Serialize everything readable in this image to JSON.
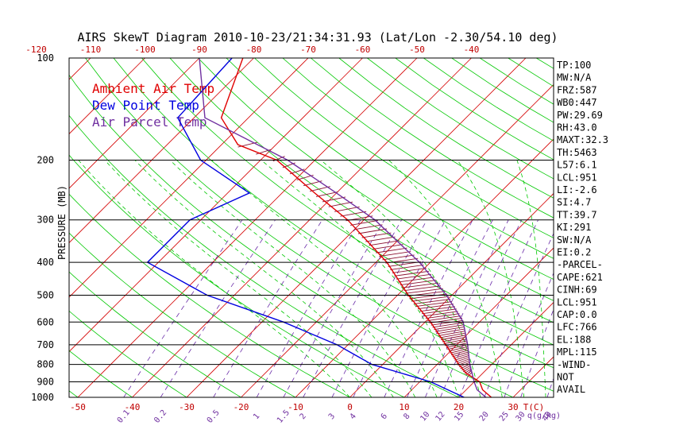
{
  "chart_data": {
    "type": "line",
    "title": "AIRS SkewT Diagram 2010-10-23/21:34:31.93 (Lat/Lon -2.30/54.10 deg)",
    "ylabel": "PRESSURE (MB)",
    "xlabel": "T(C)",
    "mixing_ratio_label": "q(g/kg)",
    "pressure_ticks": [
      100,
      200,
      300,
      400,
      500,
      600,
      700,
      800,
      900,
      1000
    ],
    "bottom_temp_ticks": [
      -50,
      -40,
      -30,
      -20,
      -10,
      0,
      10,
      20,
      30
    ],
    "top_temp_ticks": [
      -120,
      -110,
      -100,
      -90,
      -80,
      -70,
      -60,
      -50,
      -40
    ],
    "mixing_ratio_ticks": [
      "0.1",
      "0.2",
      "0.5",
      "1",
      "1.5",
      "2",
      "3",
      "4",
      "6",
      "8",
      "10",
      "12",
      "15",
      "20",
      "25",
      "30",
      "40"
    ],
    "legend": [
      {
        "name": "Ambient Air Temp",
        "color": "#e00000"
      },
      {
        "name": "Dew Point Temp",
        "color": "#0000e0"
      },
      {
        "name": "Air Parcel Temp",
        "color": "#7030a0"
      }
    ],
    "series": [
      {
        "name": "Ambient Air Temp",
        "color": "#e00000",
        "points": [
          [
            100,
            -82
          ],
          [
            150,
            -75
          ],
          [
            180,
            -67
          ],
          [
            200,
            -57
          ],
          [
            250,
            -44
          ],
          [
            300,
            -33
          ],
          [
            400,
            -18
          ],
          [
            500,
            -8
          ],
          [
            600,
            1
          ],
          [
            700,
            8
          ],
          [
            800,
            14
          ],
          [
            850,
            17
          ],
          [
            900,
            21
          ],
          [
            950,
            23
          ],
          [
            1000,
            26
          ]
        ]
      },
      {
        "name": "Dew Point Temp",
        "color": "#0000e0",
        "points": [
          [
            100,
            -84
          ],
          [
            150,
            -83
          ],
          [
            200,
            -71
          ],
          [
            250,
            -56
          ],
          [
            300,
            -62
          ],
          [
            400,
            -62
          ],
          [
            500,
            -45
          ],
          [
            600,
            -26
          ],
          [
            700,
            -12
          ],
          [
            800,
            -2
          ],
          [
            900,
            12
          ],
          [
            1000,
            21
          ]
        ]
      },
      {
        "name": "Air Parcel Temp",
        "color": "#7030a0",
        "points": [
          [
            100,
            -90
          ],
          [
            150,
            -78
          ],
          [
            200,
            -55
          ],
          [
            250,
            -40
          ],
          [
            300,
            -28
          ],
          [
            400,
            -12
          ],
          [
            500,
            -1
          ],
          [
            600,
            7
          ],
          [
            700,
            12
          ],
          [
            800,
            16
          ],
          [
            900,
            20
          ],
          [
            950,
            22
          ],
          [
            1000,
            25
          ]
        ]
      }
    ],
    "indices": [
      "TP:100",
      "MW:N/A",
      "FRZ:587",
      "WB0:447",
      "PW:29.69",
      "RH:43.0",
      "MAXT:32.3",
      "TH:5463",
      "L57:6.1",
      "LCL:951",
      "LI:-2.6",
      "SI:4.7",
      "TT:39.7",
      "KI:291",
      "SW:N/A",
      "EI:0.2",
      "-PARCEL-",
      "CAPE:621",
      "CINH:69",
      "LCL:951",
      "CAP:0.0",
      "LFC:766",
      "EL:188",
      "MPL:115",
      "-WIND-",
      "NOT",
      "AVAIL"
    ],
    "grid": true,
    "legend_placement": "top-left"
  }
}
